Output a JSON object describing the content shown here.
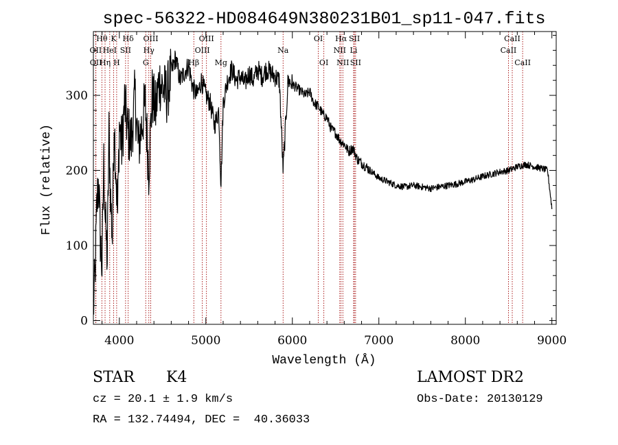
{
  "chart_data": {
    "type": "line",
    "title": "spec-56322-HD084649N380231B01_sp11-047.fits",
    "xlabel": "Wavelength (Å)",
    "ylabel": "Flux (relative)",
    "xlim": [
      3700,
      9050
    ],
    "ylim": [
      -5,
      385
    ],
    "xticks": [
      4000,
      5000,
      6000,
      7000,
      8000,
      9000
    ],
    "yticks": [
      0,
      100,
      200,
      300
    ],
    "line_color": "#000000",
    "marker_color": "#a00000",
    "series": [
      {
        "x": [
          3700,
          3720,
          3740,
          3760,
          3780,
          3800,
          3820,
          3840,
          3860,
          3880,
          3900,
          3920,
          3940,
          3960,
          3980,
          4000,
          4030,
          4060,
          4100,
          4140,
          4180,
          4220,
          4260,
          4300,
          4340,
          4380,
          4420,
          4460,
          4500,
          4550,
          4600,
          4650,
          4700,
          4750,
          4800,
          4850,
          4900,
          4950,
          5000,
          5050,
          5100,
          5150,
          5175,
          5200,
          5250,
          5300,
          5350,
          5400,
          5450,
          5500,
          5550,
          5600,
          5650,
          5700,
          5750,
          5800,
          5850,
          5893,
          5950,
          6000,
          6050,
          6100,
          6150,
          6200,
          6250,
          6300,
          6350,
          6400,
          6450,
          6500,
          6550,
          6600,
          6650,
          6700,
          6750,
          6800,
          6850,
          6900,
          6950,
          7000,
          7100,
          7200,
          7300,
          7400,
          7500,
          7600,
          7700,
          7800,
          7900,
          8000,
          8100,
          8200,
          8300,
          8400,
          8500,
          8600,
          8700,
          8800,
          8900,
          8950,
          9000
        ],
        "y": [
          15,
          60,
          150,
          190,
          110,
          70,
          210,
          130,
          80,
          250,
          160,
          110,
          270,
          200,
          140,
          260,
          230,
          290,
          250,
          240,
          300,
          230,
          260,
          290,
          200,
          300,
          280,
          320,
          310,
          300,
          330,
          350,
          320,
          330,
          340,
          310,
          300,
          320,
          300,
          290,
          260,
          280,
          180,
          290,
          320,
          335,
          320,
          325,
          315,
          330,
          320,
          335,
          325,
          335,
          330,
          325,
          320,
          200,
          320,
          315,
          310,
          305,
          300,
          305,
          290,
          285,
          275,
          270,
          255,
          250,
          240,
          235,
          225,
          230,
          215,
          210,
          205,
          200,
          195,
          190,
          185,
          180,
          178,
          180,
          178,
          176,
          178,
          180,
          182,
          185,
          188,
          192,
          195,
          198,
          200,
          205,
          208,
          205,
          202,
          200,
          150
        ]
      }
    ],
    "lines": [
      {
        "label": "Hθ",
        "x": 3798,
        "row": 0
      },
      {
        "label": "OII",
        "x": 3727,
        "row": 1
      },
      {
        "label": "OII",
        "x": 3729,
        "row": 2
      },
      {
        "label": "HeI",
        "x": 3889,
        "row": 1
      },
      {
        "label": "Hη",
        "x": 3835,
        "row": 2
      },
      {
        "label": "K",
        "x": 3934,
        "row": 0
      },
      {
        "label": "H",
        "x": 3969,
        "row": 2
      },
      {
        "label": "SII",
        "x": 4072,
        "row": 1
      },
      {
        "label": "Hδ",
        "x": 4102,
        "row": 0
      },
      {
        "label": "OIII",
        "x": 4363,
        "row": 0
      },
      {
        "label": "Hγ",
        "x": 4341,
        "row": 1
      },
      {
        "label": "G",
        "x": 4305,
        "row": 2
      },
      {
        "label": "OIII",
        "x": 5007,
        "row": 0
      },
      {
        "label": "OIII",
        "x": 4959,
        "row": 1
      },
      {
        "label": "Hβ",
        "x": 4861,
        "row": 2
      },
      {
        "label": "Mg",
        "x": 5175,
        "row": 2
      },
      {
        "label": "Na",
        "x": 5893,
        "row": 1
      },
      {
        "label": "OI",
        "x": 6300,
        "row": 0
      },
      {
        "label": "OI",
        "x": 6364,
        "row": 2
      },
      {
        "label": "Hα",
        "x": 6563,
        "row": 0
      },
      {
        "label": "NII",
        "x": 6548,
        "row": 1
      },
      {
        "label": "NII",
        "x": 6584,
        "row": 2
      },
      {
        "label": "SII",
        "x": 6717,
        "row": 0
      },
      {
        "label": "Li",
        "x": 6708,
        "row": 1
      },
      {
        "label": "SII",
        "x": 6731,
        "row": 2
      },
      {
        "label": "CaII",
        "x": 8542,
        "row": 0
      },
      {
        "label": "CaII",
        "x": 8498,
        "row": 1
      },
      {
        "label": "CaII",
        "x": 8662,
        "row": 2
      }
    ]
  },
  "info": {
    "star_type": "STAR",
    "subclass": "K4",
    "survey": "LAMOST DR2",
    "cz": "cz = 20.1 ± 1.9 km/s",
    "obs_date": "Obs-Date: 20130129",
    "coords": "RA = 132.74494, DEC =  40.36033"
  }
}
